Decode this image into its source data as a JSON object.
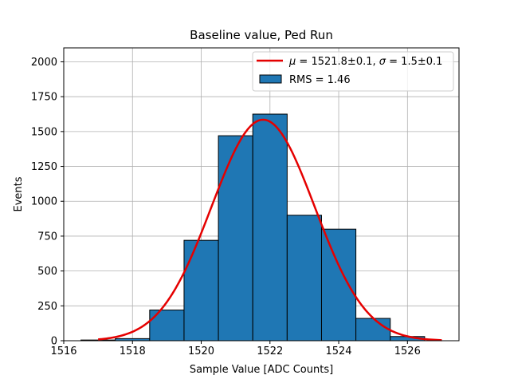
{
  "chart_data": {
    "type": "bar",
    "title": "Baseline value, Ped Run",
    "xlabel": "Sample Value [ADC Counts]",
    "ylabel": "Events",
    "xlim": [
      1516,
      1527.5
    ],
    "ylim": [
      0,
      2100
    ],
    "xticks": [
      1516,
      1518,
      1520,
      1522,
      1524,
      1526
    ],
    "yticks": [
      0,
      250,
      500,
      750,
      1000,
      1250,
      1500,
      1750,
      2000
    ],
    "grid": true,
    "legend_position": "top-right",
    "histogram": {
      "name": "RMS = 1.46",
      "color": "#1f77b4",
      "edgecolor": "#000000",
      "bins": [
        {
          "x0": 1516.5,
          "x1": 1517.5,
          "count": 5
        },
        {
          "x0": 1517.5,
          "x1": 1518.5,
          "count": 15
        },
        {
          "x0": 1518.5,
          "x1": 1519.5,
          "count": 220
        },
        {
          "x0": 1519.5,
          "x1": 1520.5,
          "count": 720
        },
        {
          "x0": 1520.5,
          "x1": 1521.5,
          "count": 1470
        },
        {
          "x0": 1521.5,
          "x1": 1522.5,
          "count": 1625
        },
        {
          "x0": 1522.5,
          "x1": 1523.5,
          "count": 900
        },
        {
          "x0": 1523.5,
          "x1": 1524.5,
          "count": 800
        },
        {
          "x0": 1524.5,
          "x1": 1525.5,
          "count": 160
        },
        {
          "x0": 1525.5,
          "x1": 1526.5,
          "count": 30
        }
      ]
    },
    "fit": {
      "name": "μ = 1521.8±0.1, σ = 1.5±0.1",
      "name_parts": {
        "mu_sym": "μ",
        "mu_rest": " = 1521.8±0.1, ",
        "sigma_sym": "σ",
        "sigma_rest": " = 1.5±0.1"
      },
      "color": "#e50000",
      "type": "gaussian",
      "mu": 1521.8,
      "sigma": 1.5,
      "amplitude": 1585,
      "x_range": [
        1517.0,
        1527.0
      ]
    }
  }
}
